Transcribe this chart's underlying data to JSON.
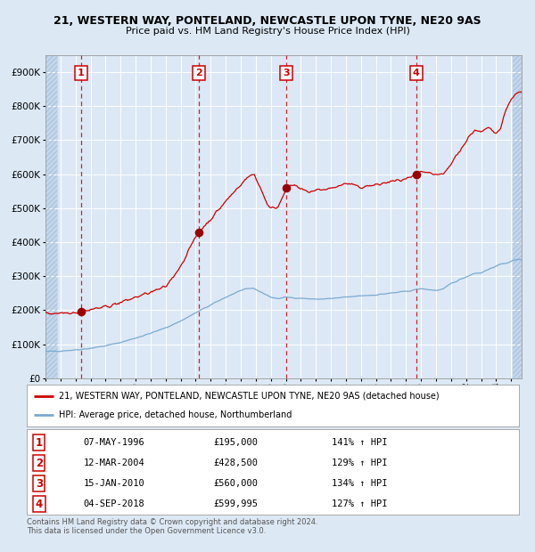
{
  "title1": "21, WESTERN WAY, PONTELAND, NEWCASTLE UPON TYNE, NE20 9AS",
  "title2": "Price paid vs. HM Land Registry's House Price Index (HPI)",
  "bg_color": "#dce9f5",
  "plot_bg_color": "#dce8f5",
  "hatch_color": "#c8d8ea",
  "grid_color": "#ffffff",
  "red_line_color": "#cc0000",
  "blue_line_color": "#7aaad0",
  "sale_marker_color": "#990000",
  "vline_color": "#cc0000",
  "sale_dates": [
    1996.35,
    2004.19,
    2010.04,
    2018.67
  ],
  "sale_prices": [
    195000,
    428500,
    560000,
    599995
  ],
  "sale_labels": [
    "1",
    "2",
    "3",
    "4"
  ],
  "sale_table": [
    [
      "1",
      "07-MAY-1996",
      "£195,000",
      "141% ↑ HPI"
    ],
    [
      "2",
      "12-MAR-2004",
      "£428,500",
      "129% ↑ HPI"
    ],
    [
      "3",
      "15-JAN-2010",
      "£560,000",
      "134% ↑ HPI"
    ],
    [
      "4",
      "04-SEP-2018",
      "£599,995",
      "127% ↑ HPI"
    ]
  ],
  "legend1": "21, WESTERN WAY, PONTELAND, NEWCASTLE UPON TYNE, NE20 9AS (detached house)",
  "legend2": "HPI: Average price, detached house, Northumberland",
  "footer": "Contains HM Land Registry data © Crown copyright and database right 2024.\nThis data is licensed under the Open Government Licence v3.0.",
  "ylim": [
    0,
    950000
  ],
  "xlim_start": 1994.0,
  "xlim_end": 2025.7
}
